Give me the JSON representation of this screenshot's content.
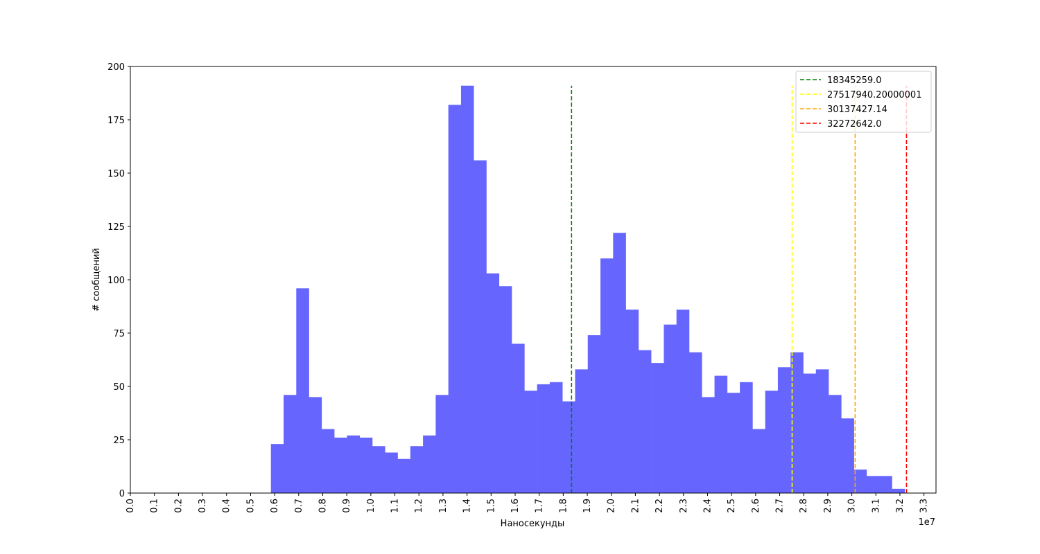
{
  "chart_data": {
    "type": "bar",
    "xlabel": "Наносекунды",
    "ylabel": "# сообщений",
    "x_offset_label": "1e7",
    "xlim": [
      0,
      3.35
    ],
    "ylim": [
      0,
      200
    ],
    "x_ticks": [
      "0.0",
      "0.1",
      "0.2",
      "0.3",
      "0.4",
      "0.5",
      "0.6",
      "0.7",
      "0.8",
      "0.9",
      "1.0",
      "1.1",
      "1.2",
      "1.3",
      "1.4",
      "1.5",
      "1.6",
      "1.7",
      "1.8",
      "1.9",
      "2.0",
      "2.1",
      "2.2",
      "2.3",
      "2.4",
      "2.5",
      "2.6",
      "2.7",
      "2.8",
      "2.9",
      "3.0",
      "3.1",
      "3.2",
      "3.3"
    ],
    "y_ticks": [
      "0",
      "25",
      "50",
      "75",
      "100",
      "125",
      "150",
      "175",
      "200"
    ],
    "bar_color": "#6666ff",
    "bin_start": 0.5845,
    "bin_width": 0.0527,
    "values": [
      23,
      46,
      96,
      45,
      30,
      26,
      27,
      26,
      22,
      19,
      16,
      22,
      27,
      46,
      182,
      191,
      156,
      103,
      97,
      70,
      48,
      51,
      52,
      43,
      58,
      74,
      110,
      122,
      86,
      67,
      61,
      79,
      86,
      66,
      45,
      55,
      47,
      52,
      30,
      48,
      59,
      66,
      56,
      58,
      46,
      35,
      11,
      8,
      8,
      2
    ],
    "lines": [
      {
        "name": "18345259.0",
        "x": 1.8345259,
        "color": "#008000"
      },
      {
        "name": "27517940.20000001",
        "x": 2.751794020000001,
        "color": "#ffff00"
      },
      {
        "name": "30137427.14",
        "x": 3.013742714,
        "color": "#ffa500"
      },
      {
        "name": "32272642.0",
        "x": 3.2272642,
        "color": "#ff0000"
      }
    ],
    "line_top": 191,
    "legend_position": "top-right",
    "grid": false
  }
}
